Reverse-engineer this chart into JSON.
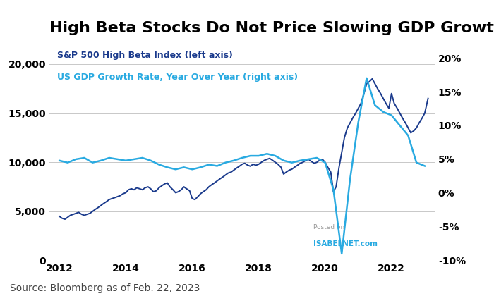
{
  "title": "High Beta Stocks Do Not Price Slowing GDP Growth",
  "source": "Source: Bloomberg as of Feb. 22, 2023",
  "legend_line1": "S&P 500 High Beta Index (left axis)",
  "legend_line2": "US GDP Growth Rate, Year Over Year (right axis)",
  "watermark_line1": "Posted on",
  "watermark_line2": "ISABELNET.com",
  "sp500_color": "#1a3a8c",
  "gdp_color": "#29aae1",
  "background_color": "#ffffff",
  "title_fontsize": 16,
  "label_fontsize": 9,
  "source_fontsize": 10,
  "left_ylim": [
    0,
    22000
  ],
  "right_ylim": [
    -10,
    22
  ],
  "left_yticks": [
    0,
    5000,
    10000,
    15000,
    20000
  ],
  "right_yticks": [
    -10,
    -5,
    0,
    5,
    10,
    15,
    20
  ],
  "xlim_start": 2011.7,
  "xlim_end": 2023.3,
  "xticks": [
    2012,
    2014,
    2016,
    2018,
    2020,
    2022
  ],
  "sp500_x": [
    2012.0,
    2012.08,
    2012.17,
    2012.25,
    2012.33,
    2012.42,
    2012.5,
    2012.58,
    2012.67,
    2012.75,
    2012.83,
    2012.92,
    2013.0,
    2013.08,
    2013.17,
    2013.25,
    2013.33,
    2013.42,
    2013.5,
    2013.58,
    2013.67,
    2013.75,
    2013.83,
    2013.92,
    2014.0,
    2014.08,
    2014.17,
    2014.25,
    2014.33,
    2014.42,
    2014.5,
    2014.58,
    2014.67,
    2014.75,
    2014.83,
    2014.92,
    2015.0,
    2015.08,
    2015.17,
    2015.25,
    2015.33,
    2015.42,
    2015.5,
    2015.58,
    2015.67,
    2015.75,
    2015.83,
    2015.92,
    2016.0,
    2016.08,
    2016.17,
    2016.25,
    2016.33,
    2016.42,
    2016.5,
    2016.58,
    2016.67,
    2016.75,
    2016.83,
    2016.92,
    2017.0,
    2017.08,
    2017.17,
    2017.25,
    2017.33,
    2017.42,
    2017.5,
    2017.58,
    2017.67,
    2017.75,
    2017.83,
    2017.92,
    2018.0,
    2018.08,
    2018.17,
    2018.25,
    2018.33,
    2018.42,
    2018.5,
    2018.58,
    2018.67,
    2018.75,
    2018.83,
    2018.92,
    2019.0,
    2019.08,
    2019.17,
    2019.25,
    2019.33,
    2019.42,
    2019.5,
    2019.58,
    2019.67,
    2019.75,
    2019.83,
    2019.92,
    2020.0,
    2020.08,
    2020.17,
    2020.25,
    2020.33,
    2020.42,
    2020.5,
    2020.58,
    2020.67,
    2020.75,
    2020.83,
    2020.92,
    2021.0,
    2021.08,
    2021.17,
    2021.25,
    2021.33,
    2021.42,
    2021.5,
    2021.58,
    2021.67,
    2021.75,
    2021.83,
    2021.92,
    2022.0,
    2022.08,
    2022.17,
    2022.25,
    2022.33,
    2022.42,
    2022.5,
    2022.58,
    2022.67,
    2022.75,
    2022.83,
    2022.92,
    2023.0,
    2023.1
  ],
  "sp500_y": [
    4500,
    4300,
    4200,
    4400,
    4600,
    4700,
    4800,
    4900,
    4700,
    4600,
    4700,
    4800,
    5000,
    5200,
    5400,
    5600,
    5800,
    6000,
    6200,
    6300,
    6400,
    6500,
    6600,
    6800,
    6900,
    7200,
    7300,
    7200,
    7400,
    7300,
    7200,
    7400,
    7500,
    7300,
    7000,
    7100,
    7400,
    7600,
    7800,
    7900,
    7500,
    7200,
    6900,
    7000,
    7200,
    7500,
    7300,
    7100,
    6300,
    6200,
    6500,
    6800,
    7000,
    7200,
    7500,
    7700,
    7900,
    8100,
    8300,
    8500,
    8700,
    8900,
    9000,
    9200,
    9400,
    9600,
    9800,
    9900,
    9700,
    9600,
    9800,
    9700,
    9800,
    10000,
    10200,
    10300,
    10400,
    10200,
    10000,
    9800,
    9500,
    8800,
    9000,
    9200,
    9300,
    9500,
    9700,
    9900,
    10000,
    10200,
    10300,
    10100,
    9900,
    10000,
    10200,
    10300,
    10000,
    9500,
    9000,
    7000,
    7500,
    9500,
    11000,
    12500,
    13500,
    14000,
    14500,
    15000,
    15500,
    16000,
    17000,
    18000,
    18200,
    18500,
    18000,
    17500,
    17000,
    16500,
    16000,
    15500,
    17000,
    16000,
    15500,
    15000,
    14500,
    14000,
    13500,
    13000,
    13200,
    13500,
    14000,
    14500,
    15000,
    16500
  ],
  "gdp_x": [
    2012.0,
    2012.25,
    2012.5,
    2012.75,
    2013.0,
    2013.25,
    2013.5,
    2013.75,
    2014.0,
    2014.25,
    2014.5,
    2014.75,
    2015.0,
    2015.25,
    2015.5,
    2015.75,
    2016.0,
    2016.25,
    2016.5,
    2016.75,
    2017.0,
    2017.25,
    2017.5,
    2017.75,
    2018.0,
    2018.25,
    2018.5,
    2018.75,
    2019.0,
    2019.25,
    2019.5,
    2019.75,
    2020.0,
    2020.25,
    2020.5,
    2020.75,
    2021.0,
    2021.25,
    2021.5,
    2021.75,
    2022.0,
    2022.25,
    2022.5,
    2022.75,
    2023.0
  ],
  "gdp_y": [
    4.8,
    4.5,
    5.0,
    5.2,
    4.5,
    4.8,
    5.2,
    5.0,
    4.8,
    5.0,
    5.2,
    4.8,
    4.2,
    3.8,
    3.5,
    3.8,
    3.5,
    3.8,
    4.2,
    4.0,
    4.5,
    4.8,
    5.2,
    5.5,
    5.5,
    5.8,
    5.5,
    4.8,
    4.5,
    4.8,
    5.0,
    5.2,
    4.5,
    0.5,
    -9.0,
    2.0,
    10.5,
    17.0,
    13.0,
    12.0,
    11.5,
    10.0,
    8.5,
    4.5,
    4.0
  ]
}
